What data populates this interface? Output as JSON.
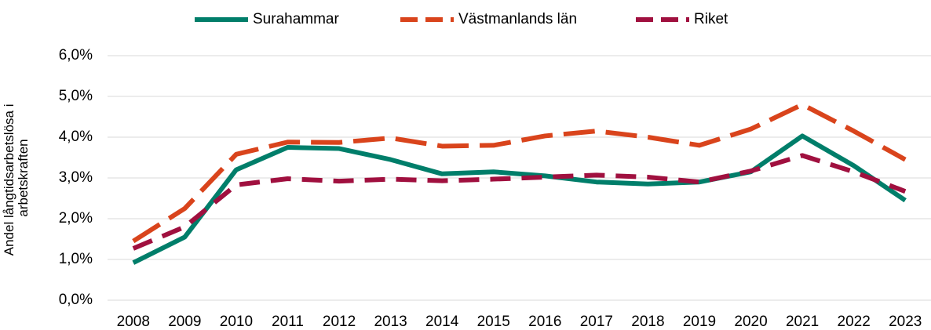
{
  "chart_data": {
    "type": "line",
    "y_label": [
      "Andel långtidsarbetslösa i",
      "arbetskraften"
    ],
    "categories": [
      "2008",
      "2009",
      "2010",
      "2011",
      "2012",
      "2013",
      "2014",
      "2015",
      "2016",
      "2017",
      "2018",
      "2019",
      "2020",
      "2021",
      "2022",
      "2023"
    ],
    "series": [
      {
        "name": "Surahammar",
        "color": "#007e6a",
        "values": [
          0.92,
          1.55,
          3.2,
          3.75,
          3.72,
          3.45,
          3.1,
          3.15,
          3.05,
          2.9,
          2.85,
          2.9,
          3.15,
          4.03,
          3.3,
          2.45
        ]
      },
      {
        "name": "Västmanlands län",
        "color": "#d9441c",
        "values": [
          1.45,
          2.25,
          3.58,
          3.88,
          3.87,
          3.98,
          3.78,
          3.8,
          4.03,
          4.15,
          4.0,
          3.8,
          4.2,
          4.8,
          4.15,
          3.45
        ]
      },
      {
        "name": "Riket",
        "color": "#a0103f",
        "values": [
          1.27,
          1.8,
          2.83,
          2.98,
          2.92,
          2.97,
          2.93,
          2.97,
          3.02,
          3.07,
          3.02,
          2.9,
          3.17,
          3.55,
          3.15,
          2.67
        ]
      }
    ],
    "ylim": [
      0,
      6
    ],
    "yticks": [
      {
        "value": 0,
        "label": "0,0%"
      },
      {
        "value": 1,
        "label": "1,0%"
      },
      {
        "value": 2,
        "label": "2,0%"
      },
      {
        "value": 3,
        "label": "3,0%"
      },
      {
        "value": 4,
        "label": "4,0%"
      },
      {
        "value": 5,
        "label": "5,0%"
      },
      {
        "value": 6,
        "label": "6,0%"
      }
    ],
    "grid": true,
    "legend": "top"
  }
}
